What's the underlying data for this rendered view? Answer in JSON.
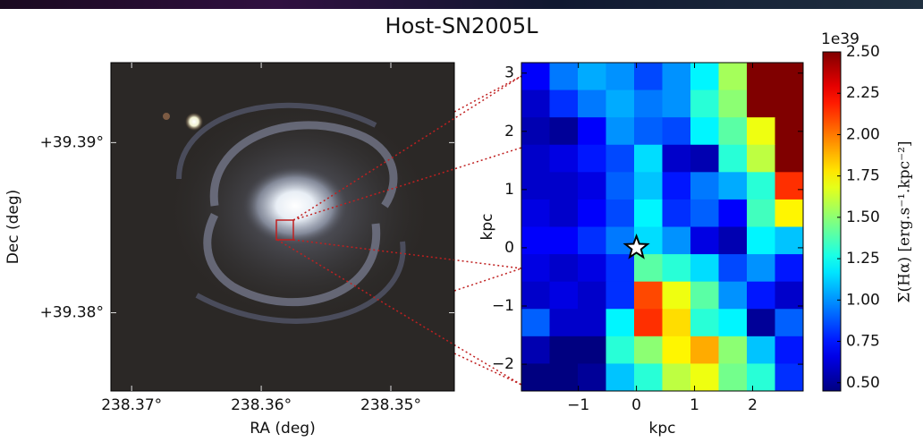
{
  "title": "Host-SN2005L",
  "chart_data": [
    {
      "type": "image",
      "xlabel": "RA (deg)",
      "ylabel": "Dec (deg)",
      "xlim": [
        238.3716,
        238.3451
      ],
      "ylim": [
        39.3754,
        39.3947
      ],
      "xticks": [
        {
          "value": 238.37,
          "label": "238.37°"
        },
        {
          "value": 238.36,
          "label": "238.36°"
        },
        {
          "value": 238.35,
          "label": "238.35°"
        }
      ],
      "yticks": [
        {
          "value": 39.38,
          "label": "+39.38°"
        },
        {
          "value": 39.39,
          "label": "+39.39°"
        }
      ]
    },
    {
      "type": "heatmap",
      "xlabel": "kpc",
      "ylabel": "kpc",
      "xlim": [
        -1.98,
        2.87
      ],
      "ylim": [
        -2.46,
        3.18
      ],
      "xticks": [
        {
          "value": -1,
          "label": "−1"
        },
        0,
        1,
        2
      ],
      "yticks": [
        {
          "value": -2,
          "label": "−2"
        },
        {
          "value": -1,
          "label": "−1"
        },
        0,
        1,
        2,
        3
      ],
      "colormap": "jet",
      "values": [
        [
          0.7,
          0.95,
          1.05,
          1.0,
          0.85,
          1.0,
          1.2,
          1.55,
          2.6,
          2.6
        ],
        [
          0.6,
          0.8,
          0.95,
          1.05,
          0.95,
          1.0,
          1.3,
          1.5,
          2.6,
          2.6
        ],
        [
          0.55,
          0.5,
          0.7,
          1.0,
          0.9,
          0.85,
          1.2,
          1.4,
          1.7,
          2.6
        ],
        [
          0.6,
          0.65,
          0.75,
          0.85,
          1.15,
          0.6,
          0.55,
          1.3,
          1.6,
          2.6
        ],
        [
          0.6,
          0.6,
          0.65,
          0.9,
          1.1,
          0.75,
          0.95,
          1.05,
          1.3,
          2.15
        ],
        [
          0.65,
          0.6,
          0.7,
          0.85,
          1.2,
          0.8,
          0.9,
          0.7,
          1.35,
          1.75
        ],
        [
          0.7,
          0.7,
          0.8,
          0.95,
          1.15,
          1.0,
          0.65,
          0.55,
          1.2,
          1.1
        ],
        [
          0.65,
          0.6,
          0.65,
          0.8,
          1.4,
          1.3,
          1.15,
          0.85,
          1.0,
          0.75
        ],
        [
          0.6,
          0.65,
          0.6,
          0.8,
          2.1,
          1.7,
          1.4,
          1.0,
          0.75,
          0.6
        ],
        [
          0.9,
          0.6,
          0.6,
          1.2,
          2.15,
          1.8,
          1.3,
          1.2,
          0.5,
          0.9
        ],
        [
          0.55,
          0.45,
          0.45,
          1.3,
          1.5,
          1.75,
          1.9,
          1.5,
          1.1,
          0.75
        ],
        [
          0.45,
          0.45,
          0.5,
          1.1,
          1.3,
          1.6,
          1.7,
          1.45,
          1.3,
          0.8
        ]
      ],
      "marker": {
        "x": 0,
        "y": 0
      },
      "colorbar": {
        "lim": [
          0.45,
          2.5
        ],
        "offset_label": "1e39",
        "label": "Σ(Hα) [erg.s⁻¹.kpc⁻²]",
        "ticks": [
          {
            "value": 0.5,
            "label": "0.50"
          },
          {
            "value": 0.75,
            "label": "0.75"
          },
          {
            "value": 1.0,
            "label": "1.00"
          },
          {
            "value": 1.25,
            "label": "1.25"
          },
          {
            "value": 1.5,
            "label": "1.50"
          },
          {
            "value": 1.75,
            "label": "1.75"
          },
          {
            "value": 2.0,
            "label": "2.00"
          },
          {
            "value": 2.25,
            "label": "2.25"
          },
          {
            "value": 2.5,
            "label": "2.50"
          }
        ]
      }
    }
  ]
}
